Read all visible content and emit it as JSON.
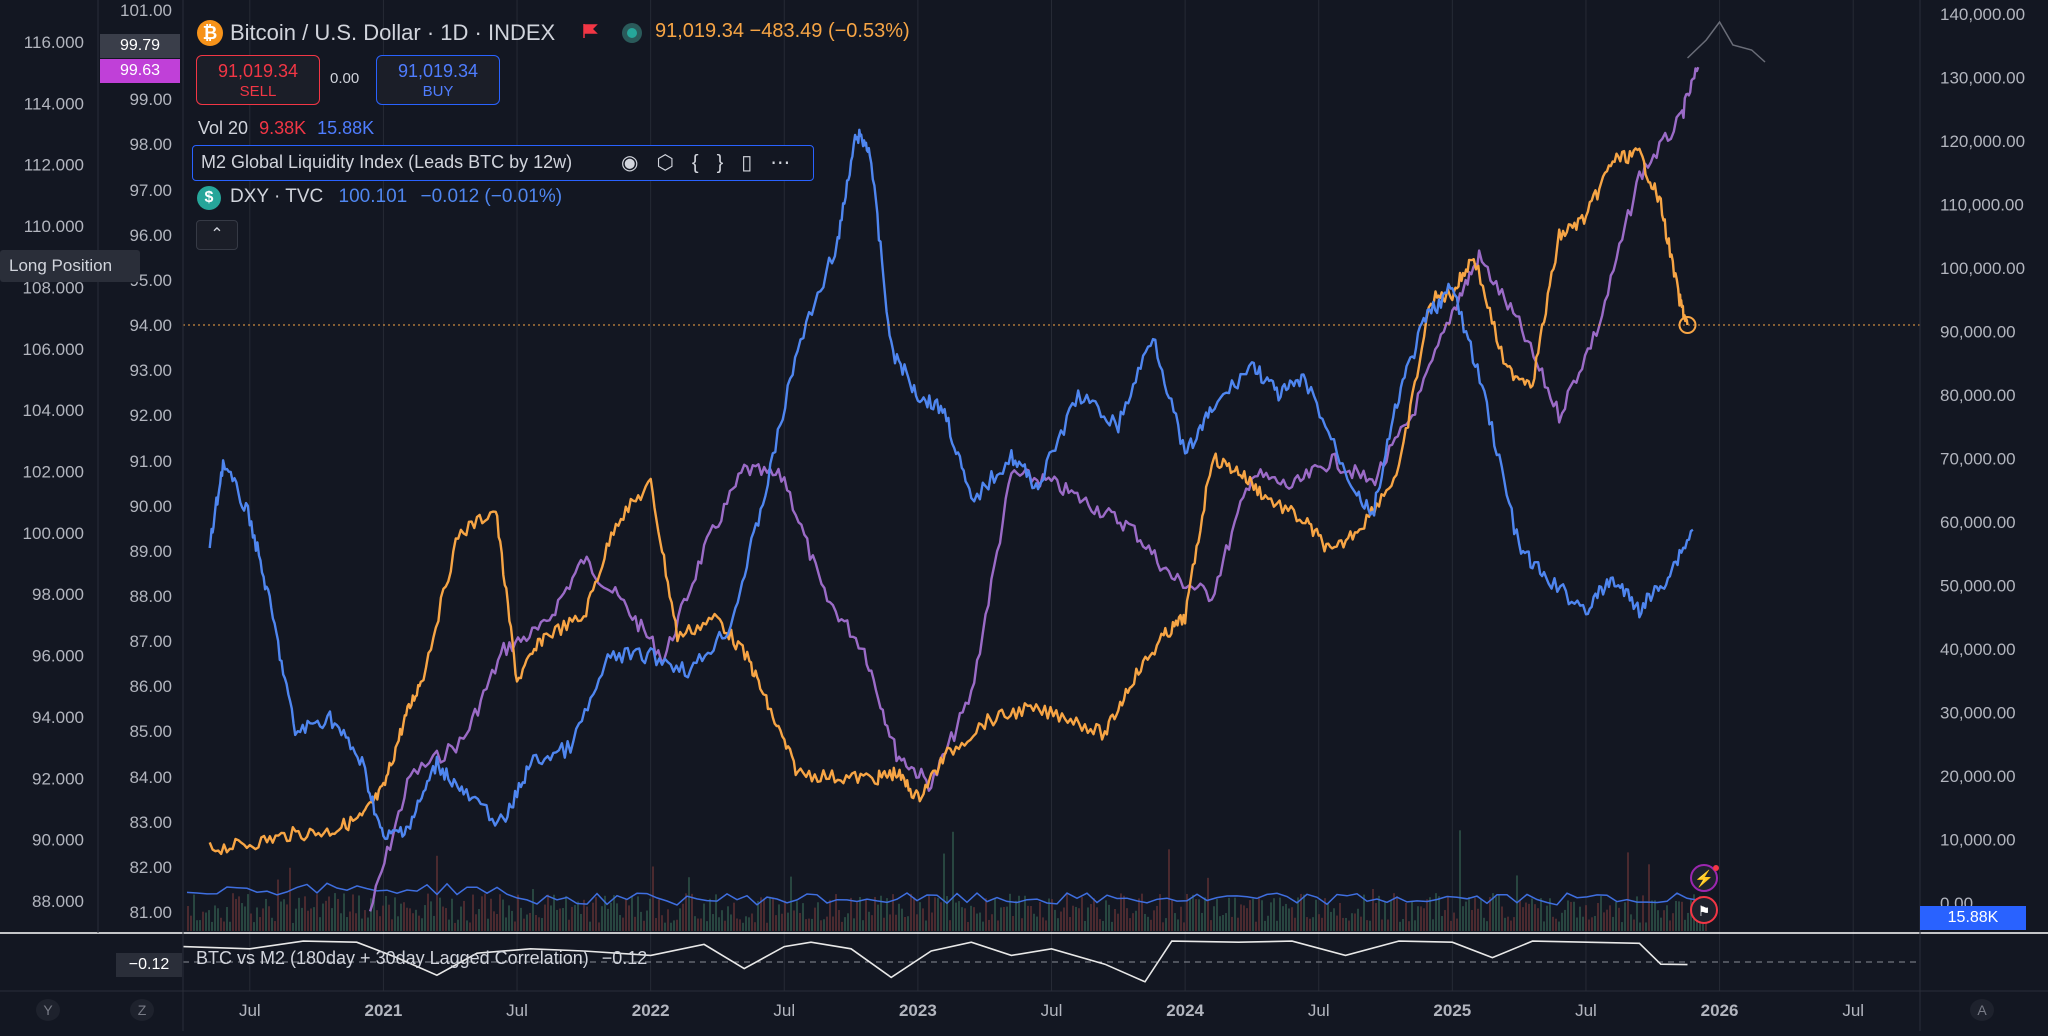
{
  "header": {
    "symbol_title": "Bitcoin / U.S. Dollar · 1D · INDEX",
    "price": "91,019.34",
    "change": "−483.49 (−0.53%)",
    "sell_price": "91,019.34",
    "sell_label": "SELL",
    "buy_price": "91,019.34",
    "buy_label": "BUY",
    "spread": "0.00",
    "vol_label": "Vol 20",
    "vol_a": "9.38K",
    "vol_b": "15.88K",
    "m2_label": "M2 Global Liquidity Index (Leads BTC by 12w)",
    "dxy_label": "DXY · TVC",
    "dxy_value": "100.101",
    "dxy_change": "−0.012 (−0.01%)",
    "btc_icon": "bitcoin-icon",
    "dxy_icon": "dollar-icon",
    "long_position": "Long Position"
  },
  "indicator_icons": [
    "eye-icon",
    "settings-icon",
    "code-icon",
    "trash-icon",
    "more-icon"
  ],
  "axis_badges": {
    "mid_top": "99.79",
    "mid_bottom": "99.63",
    "right_vol": "15.88K"
  },
  "correlation": {
    "label": "BTC vs M2 (180day + 30day Lagged Correlation)",
    "value": "−0.12",
    "tag": "−0.12"
  },
  "footer_buttons": [
    "Y",
    "Z",
    "A"
  ],
  "colors": {
    "btc": "#f7a545",
    "m2": "#9b6bc7",
    "dxy": "#4f86f0",
    "background": "#131722",
    "grid": "#2a2e39"
  },
  "chart_data": {
    "type": "line",
    "title": "Bitcoin / U.S. Dollar · 1D · INDEX",
    "x_ticks": [
      "Jul",
      "2021",
      "Jul",
      "2022",
      "Jul",
      "2023",
      "Jul",
      "2024",
      "Jul",
      "2025",
      "Jul",
      "2026",
      "Jul"
    ],
    "x_range": [
      "2020-04",
      "2026-10"
    ],
    "left_axis_outer": {
      "ticks": [
        "116.000",
        "114.000",
        "112.000",
        "110.000",
        "108.000",
        "106.000",
        "104.000",
        "102.000",
        "100.000",
        "98.000",
        "96.000",
        "94.000",
        "92.000",
        "90.000",
        "88.000"
      ],
      "range": [
        87.2,
        116.8
      ]
    },
    "left_axis_inner": {
      "ticks": [
        "101.00",
        "99.00",
        "98.00",
        "97.00",
        "96.00",
        "95.00",
        "94.00",
        "93.00",
        "92.00",
        "91.00",
        "90.00",
        "89.00",
        "88.00",
        "87.00",
        "86.00",
        "85.00",
        "84.00",
        "83.00",
        "82.00",
        "81.00"
      ]
    },
    "right_axis": {
      "ticks": [
        "140,000.00",
        "130,000.00",
        "120,000.00",
        "110,000.00",
        "100,000.00",
        "90,000.00",
        "80,000.00",
        "70,000.00",
        "60,000.00",
        "50,000.00",
        "40,000.00",
        "30,000.00",
        "20,000.00",
        "10,000.00",
        "0.00"
      ],
      "range": [
        0,
        140000
      ]
    },
    "current_price_line": 91019.34,
    "series": [
      {
        "name": "Bitcoin / U.S. Dollar",
        "axis": "right",
        "x": [
          2020.35,
          2020.5,
          2020.65,
          2020.8,
          2020.92,
          2021.0,
          2021.08,
          2021.15,
          2021.28,
          2021.42,
          2021.5,
          2021.6,
          2021.75,
          2021.87,
          2022.0,
          2022.1,
          2022.25,
          2022.37,
          2022.45,
          2022.55,
          2022.7,
          2022.85,
          2022.92,
          2023.0,
          2023.1,
          2023.25,
          2023.4,
          2023.55,
          2023.7,
          2023.8,
          2023.92,
          2024.0,
          2024.1,
          2024.2,
          2024.3,
          2024.45,
          2024.55,
          2024.67,
          2024.8,
          2024.92,
          2025.0,
          2025.08,
          2025.2,
          2025.3,
          2025.4,
          2025.5,
          2025.6,
          2025.7,
          2025.78,
          2025.85,
          2025.88
        ],
        "values": [
          8500,
          9300,
          10800,
          11300,
          13500,
          18000,
          29000,
          36000,
          58000,
          62000,
          35000,
          42000,
          45000,
          60000,
          66000,
          42000,
          45000,
          38000,
          30000,
          20500,
          19800,
          19700,
          20500,
          16500,
          23000,
          28500,
          30500,
          29500,
          26500,
          35000,
          42000,
          45000,
          70000,
          68000,
          64000,
          60000,
          55000,
          60000,
          68000,
          95000,
          96000,
          102000,
          84000,
          82000,
          105000,
          108000,
          117000,
          118000,
          110000,
          95000,
          91019
        ]
      },
      {
        "name": "M2 Global Liquidity Index (Leads BTC by 12w)",
        "axis": "left_inner",
        "x": [
          2020.95,
          2021.1,
          2021.3,
          2021.45,
          2021.6,
          2021.75,
          2021.9,
          2022.05,
          2022.2,
          2022.35,
          2022.5,
          2022.65,
          2022.8,
          2022.92,
          2023.05,
          2023.2,
          2023.35,
          2023.5,
          2023.65,
          2023.8,
          2023.95,
          2024.1,
          2024.25,
          2024.4,
          2024.55,
          2024.7,
          2024.85,
          2025.0,
          2025.1,
          2025.25,
          2025.4,
          2025.55,
          2025.7,
          2025.85,
          2025.92
        ],
        "values": [
          81.0,
          84.0,
          84.8,
          86.8,
          87.3,
          88.8,
          87.8,
          86.6,
          89.0,
          90.8,
          90.6,
          88.0,
          86.8,
          84.5,
          83.8,
          85.8,
          90.7,
          90.5,
          90.0,
          89.5,
          88.4,
          88.0,
          90.7,
          90.4,
          91.0,
          90.5,
          92.0,
          94.3,
          95.5,
          94.0,
          92.0,
          94.0,
          97.3,
          98.5,
          99.7
        ]
      },
      {
        "name": "DXY · TVC",
        "axis": "left_outer",
        "x": [
          2020.35,
          2020.4,
          2020.5,
          2020.58,
          2020.67,
          2020.8,
          2020.92,
          2021.0,
          2021.1,
          2021.2,
          2021.3,
          2021.45,
          2021.55,
          2021.7,
          2021.85,
          2022.0,
          2022.15,
          2022.3,
          2022.42,
          2022.55,
          2022.7,
          2022.77,
          2022.82,
          2022.9,
          2023.0,
          2023.1,
          2023.2,
          2023.35,
          2023.45,
          2023.6,
          2023.75,
          2023.88,
          2024.0,
          2024.1,
          2024.25,
          2024.35,
          2024.45,
          2024.6,
          2024.7,
          2024.8,
          2024.9,
          2025.0,
          2025.12,
          2025.25,
          2025.35,
          2025.5,
          2025.6,
          2025.7,
          2025.8,
          2025.9
        ],
        "values": [
          99.5,
          102.3,
          100.5,
          97.5,
          93.5,
          94.0,
          92.5,
          90.0,
          90.5,
          92.5,
          91.5,
          90.5,
          92.5,
          93.0,
          96.0,
          96.0,
          95.5,
          97.0,
          101.0,
          106.0,
          109.5,
          113.0,
          112.5,
          106.0,
          104.5,
          104.0,
          101.0,
          102.5,
          101.5,
          104.5,
          103.5,
          106.5,
          102.5,
          104.0,
          105.5,
          104.5,
          105.0,
          102.0,
          100.5,
          104.5,
          107.0,
          108.0,
          104.5,
          99.5,
          98.5,
          97.5,
          98.5,
          97.5,
          98.5,
          100.1
        ]
      }
    ],
    "lower_pane": {
      "name": "BTC vs M2 (180day + 30day Lagged Correlation)",
      "last": -0.12,
      "range": [
        -1,
        1
      ]
    },
    "legend": "top-left",
    "grid": true
  }
}
